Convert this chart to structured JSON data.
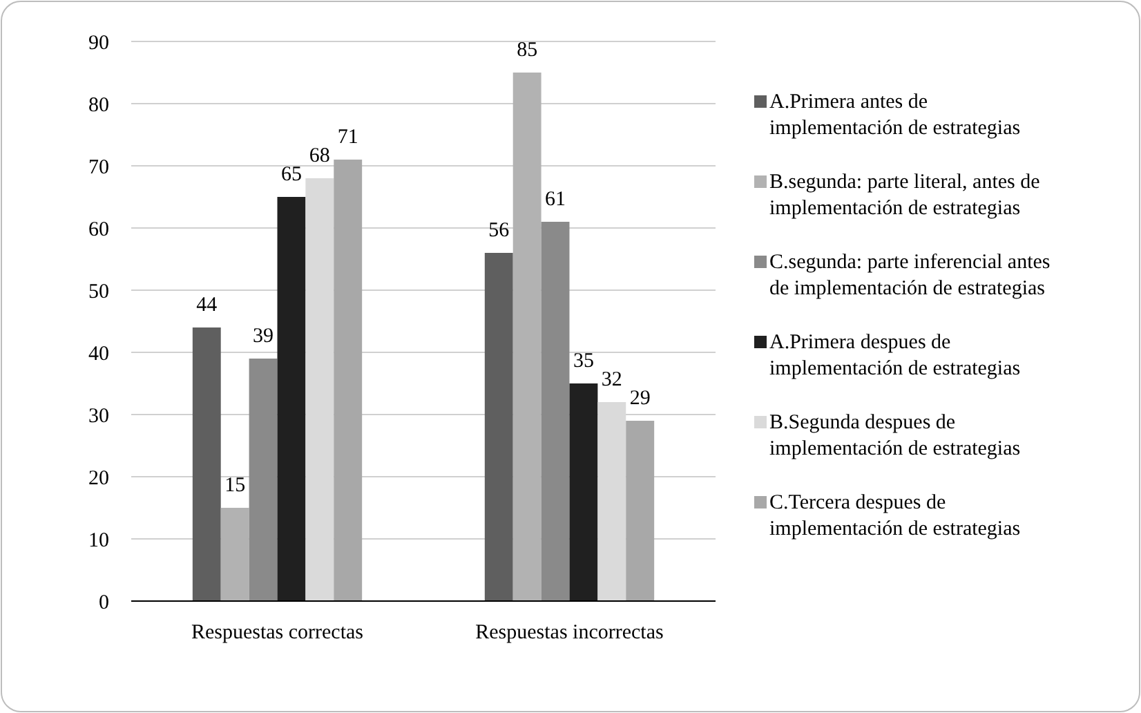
{
  "chart_data": {
    "type": "bar",
    "categories": [
      "Respuestas correctas",
      "Respuestas incorrectas"
    ],
    "series": [
      {
        "name": "A.Primera antes de implementación de estrategias",
        "color": "#5f5f5f",
        "values": [
          44,
          56
        ]
      },
      {
        "name": "B.segunda: parte literal, antes de implementación de estrategias",
        "color": "#b2b2b2",
        "values": [
          15,
          85
        ]
      },
      {
        "name": "C.segunda: parte inferencial antes de implementación de estrategias",
        "color": "#8a8a8a",
        "values": [
          39,
          61
        ]
      },
      {
        "name": "A.Primera despues de implementación de estrategias",
        "color": "#202020",
        "values": [
          65,
          35
        ]
      },
      {
        "name": "B.Segunda despues de implementación de estrategias",
        "color": "#dadada",
        "values": [
          68,
          32
        ]
      },
      {
        "name": "C.Tercera despues de implementación de estrategias",
        "color": "#a8a8a8",
        "values": [
          71,
          29
        ]
      }
    ],
    "ylim": [
      0,
      90
    ],
    "yticks": [
      0,
      10,
      20,
      30,
      40,
      50,
      60,
      70,
      80,
      90
    ],
    "grid": "y",
    "legend": "right",
    "data_labels": true
  }
}
